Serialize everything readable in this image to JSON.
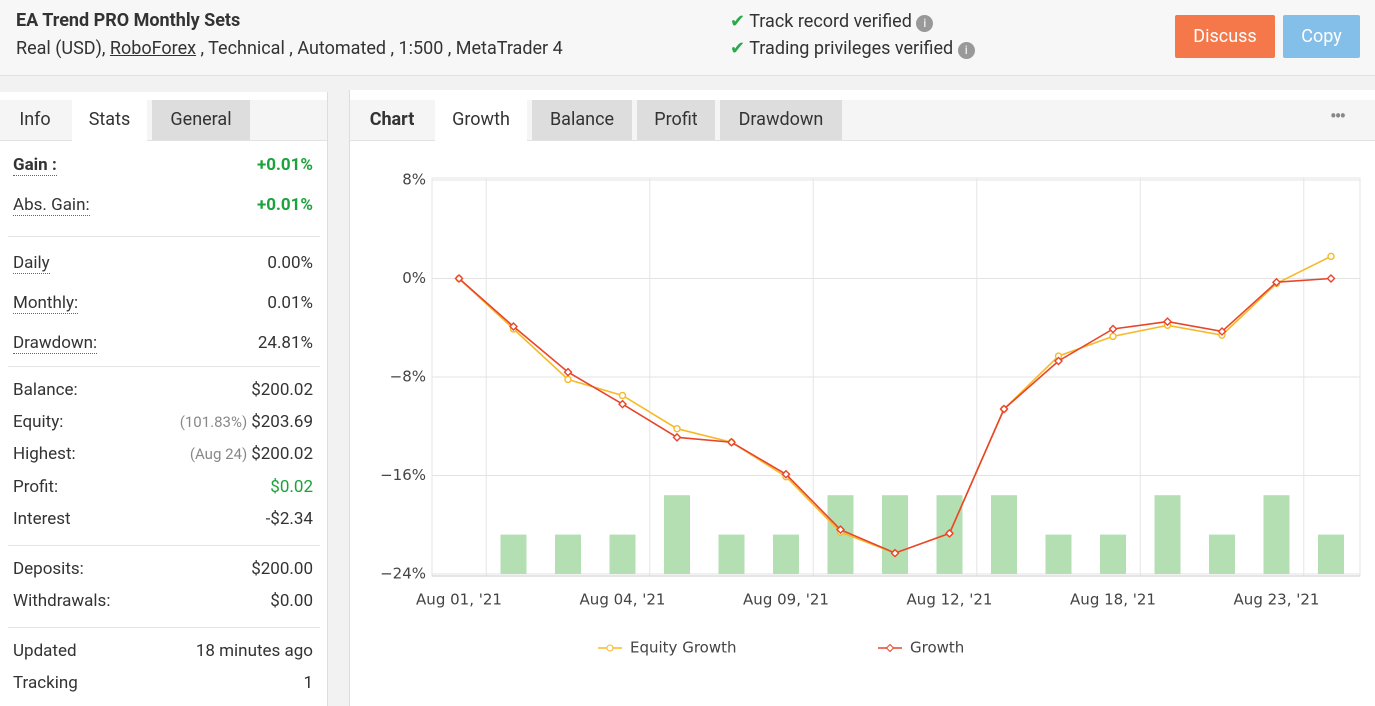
{
  "header": {
    "title": "EA Trend PRO Monthly Sets",
    "subtitle_parts": [
      "Real (USD),",
      "RoboForex",
      ", Technical , Automated , 1:500 , MetaTrader 4"
    ],
    "verified": [
      "Track record verified",
      "Trading privileges verified"
    ],
    "buttons": [
      "Discuss",
      "Copy"
    ]
  },
  "left_tabs": [
    "Info",
    "Stats",
    "General"
  ],
  "stats": [
    [
      {
        "label": "Gain :",
        "value": "+0.01%",
        "color": "#1aa33a"
      },
      {
        "label": "Abs. Gain:",
        "value": "+0.01%",
        "color": "#1aa33a"
      }
    ],
    [
      {
        "label": "Daily",
        "value": "0.00%"
      },
      {
        "label": "Monthly:",
        "value": "0.01%"
      },
      {
        "label": "Drawdown:",
        "value": "24.81%"
      }
    ],
    [
      {
        "label": "Balance:",
        "value": "$200.02"
      },
      {
        "label": "Equity:",
        "note": "(101.83%)",
        "value": "$203.69"
      },
      {
        "label": "Highest:",
        "note": "(Aug 24)",
        "value": "$200.02"
      },
      {
        "label": "Profit:",
        "value": "$0.02",
        "color": "#1aa33a"
      },
      {
        "label": "Interest",
        "value": "-$2.34"
      }
    ],
    [
      {
        "label": "Deposits:",
        "value": "$200.00"
      },
      {
        "label": "Withdrawals:",
        "value": "$0.00"
      }
    ],
    [
      {
        "label": "Updated",
        "value": "18 minutes ago"
      },
      {
        "label": "Tracking",
        "value": "1"
      }
    ]
  ],
  "chart_tabs": [
    "Chart",
    "Growth",
    "Balance",
    "Profit",
    "Drawdown"
  ],
  "chart_data": {
    "type": "line",
    "categories": [
      "Aug 01, '21",
      null,
      null,
      "Aug 04, '21",
      null,
      null,
      "Aug 09, '21",
      null,
      null,
      "Aug 12, '21",
      null,
      null,
      "Aug 18, '21",
      null,
      null,
      "Aug 23, '21",
      null
    ],
    "series": [
      {
        "name": "Equity Growth",
        "color": "#f7b928",
        "marker": "circle",
        "values": [
          0,
          -4.1,
          -8.2,
          -9.5,
          -12.2,
          -13.3,
          -16.1,
          -20.6,
          -22.3,
          -20.7,
          -10.6,
          -6.3,
          -4.7,
          -3.8,
          -4.6,
          -0.4,
          1.8
        ]
      },
      {
        "name": "Growth",
        "color": "#e8452c",
        "marker": "diamond",
        "values": [
          0,
          -3.9,
          -7.6,
          -10.2,
          -12.9,
          -13.3,
          -15.9,
          -20.4,
          -22.3,
          -20.7,
          -10.6,
          -6.7,
          -4.1,
          -3.5,
          -4.3,
          -0.3,
          0
        ]
      },
      {
        "type": "bar",
        "axis": "y2",
        "color": "#b3dfb3",
        "values": [
          null,
          1,
          1,
          1,
          2,
          1,
          1,
          2,
          2,
          2,
          2,
          1,
          1,
          2,
          1,
          2,
          1
        ]
      }
    ],
    "ylim": [
      -24,
      8
    ],
    "yticks": [
      {
        "value": -24,
        "label": "−24%"
      },
      {
        "value": -16,
        "label": "−16%"
      },
      {
        "value": -8,
        "label": "−8%"
      },
      {
        "value": 0,
        "label": "0%"
      },
      {
        "value": 8,
        "label": "8%"
      }
    ],
    "y2lim": [
      0,
      10
    ],
    "grid": true
  }
}
